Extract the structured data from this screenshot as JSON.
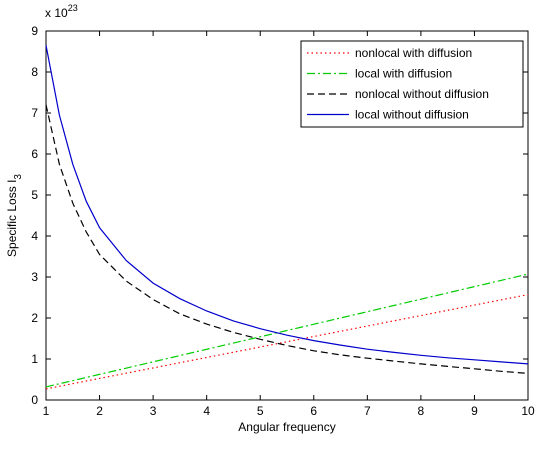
{
  "chart_data": {
    "type": "line",
    "xlabel": "Angular frequency",
    "ylabel_main": "Specific Loss I",
    "ylabel_sub": "3",
    "exponent_base": "x 10",
    "exponent_power": "23",
    "xlim": [
      1,
      10
    ],
    "ylim": [
      0,
      9
    ],
    "xticks": [
      "1",
      "2",
      "3",
      "4",
      "5",
      "6",
      "7",
      "8",
      "9",
      "10"
    ],
    "yticks": [
      "0",
      "1",
      "2",
      "3",
      "4",
      "5",
      "6",
      "7",
      "8",
      "9"
    ],
    "grid": false,
    "legend_position": "top-right",
    "series": [
      {
        "name": "nonlocal with diffusion",
        "color": "#ff0000",
        "dash": "dotted",
        "x": [
          1,
          10
        ],
        "y": [
          0.27,
          2.57
        ]
      },
      {
        "name": "local with diffusion",
        "color": "#00cc00",
        "dash": "dashdot",
        "x": [
          1,
          10
        ],
        "y": [
          0.32,
          3.07
        ]
      },
      {
        "name": "nonlocal without diffusion",
        "color": "#000000",
        "dash": "dashed",
        "x": [
          1,
          1.25,
          1.5,
          1.75,
          2,
          2.5,
          3,
          3.5,
          4,
          4.5,
          5,
          5.5,
          6,
          6.5,
          7,
          7.5,
          8,
          8.5,
          9,
          9.5,
          10
        ],
        "y": [
          7.2,
          5.75,
          4.8,
          4.1,
          3.55,
          2.9,
          2.45,
          2.1,
          1.85,
          1.65,
          1.48,
          1.33,
          1.2,
          1.1,
          1.02,
          0.95,
          0.88,
          0.82,
          0.76,
          0.7,
          0.65
        ]
      },
      {
        "name": "local without diffusion",
        "color": "#0000cc",
        "dash": "solid",
        "x": [
          1,
          1.25,
          1.5,
          1.75,
          2,
          2.5,
          3,
          3.5,
          4,
          4.5,
          5,
          5.5,
          6,
          6.5,
          7,
          7.5,
          8,
          8.5,
          9,
          9.5,
          10
        ],
        "y": [
          8.65,
          6.95,
          5.75,
          4.85,
          4.2,
          3.4,
          2.85,
          2.47,
          2.17,
          1.93,
          1.74,
          1.58,
          1.45,
          1.34,
          1.24,
          1.16,
          1.09,
          1.03,
          0.98,
          0.93,
          0.88
        ]
      }
    ]
  }
}
